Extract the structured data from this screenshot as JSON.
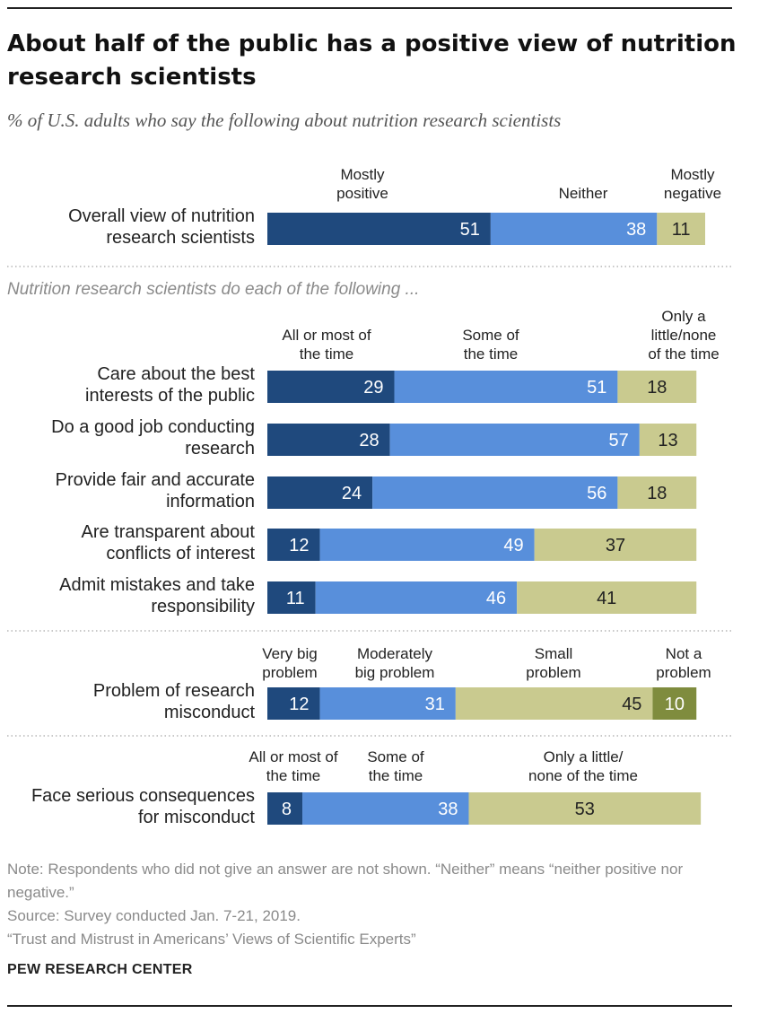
{
  "header": {
    "title": "About half of the public has a positive view of nutrition research scientists",
    "subtitle": "% of U.S. adults who say the following about nutrition research scientists"
  },
  "section_note": "Nutrition research scientists do each of the following ...",
  "notes": {
    "note": "Note: Respondents who did not give an answer are not shown. “Neither” means “neither positive nor negative.”",
    "source": "Source: Survey conducted Jan. 7-21, 2019.",
    "report": "“Trust and Mistrust in Americans’ Views of Scientific Experts”",
    "brand": "PEW RESEARCH CENTER"
  },
  "colors": {
    "dark_blue": "#1f497d",
    "light_blue": "#588fdb",
    "khaki": "#c9ca8f",
    "olive": "#7f8c3e",
    "label_text": "#222222",
    "grey_text": "#8a8a8a"
  },
  "chart_data": [
    {
      "type": "bar",
      "orientation": "horizontal",
      "stacked": true,
      "categories": [
        "Overall view of nutrition research scientists"
      ],
      "series": [
        {
          "name": "Mostly positive",
          "values": [
            51
          ]
        },
        {
          "name": "Neither",
          "values": [
            38
          ]
        },
        {
          "name": "Mostly negative",
          "values": [
            11
          ]
        }
      ],
      "xlim": [
        0,
        100
      ]
    },
    {
      "type": "bar",
      "orientation": "horizontal",
      "stacked": true,
      "categories": [
        "Care about the best interests of the public",
        "Do a good job conducting research",
        "Provide fair and accurate information",
        "Are transparent about conflicts of interest",
        "Admit mistakes and take responsibility"
      ],
      "series": [
        {
          "name": "All or most of the time",
          "values": [
            29,
            28,
            24,
            12,
            11
          ]
        },
        {
          "name": "Some of the time",
          "values": [
            51,
            57,
            56,
            49,
            46
          ]
        },
        {
          "name": "Only a little/none of the time",
          "values": [
            18,
            13,
            18,
            37,
            41
          ]
        }
      ],
      "xlim": [
        0,
        100
      ]
    },
    {
      "type": "bar",
      "orientation": "horizontal",
      "stacked": true,
      "categories": [
        "Problem of research misconduct"
      ],
      "series": [
        {
          "name": "Very big problem",
          "values": [
            12
          ]
        },
        {
          "name": "Moderately big problem",
          "values": [
            31
          ]
        },
        {
          "name": "Small problem",
          "values": [
            45
          ]
        },
        {
          "name": "Not a problem",
          "values": [
            10
          ]
        }
      ],
      "xlim": [
        0,
        100
      ]
    },
    {
      "type": "bar",
      "orientation": "horizontal",
      "stacked": true,
      "categories": [
        "Face serious consequences for misconduct"
      ],
      "series": [
        {
          "name": "All or most of the time",
          "values": [
            8
          ]
        },
        {
          "name": "Some of the time",
          "values": [
            38
          ]
        },
        {
          "name": "Only a little/ none of the time",
          "values": [
            53
          ]
        }
      ],
      "xlim": [
        0,
        100
      ]
    }
  ]
}
